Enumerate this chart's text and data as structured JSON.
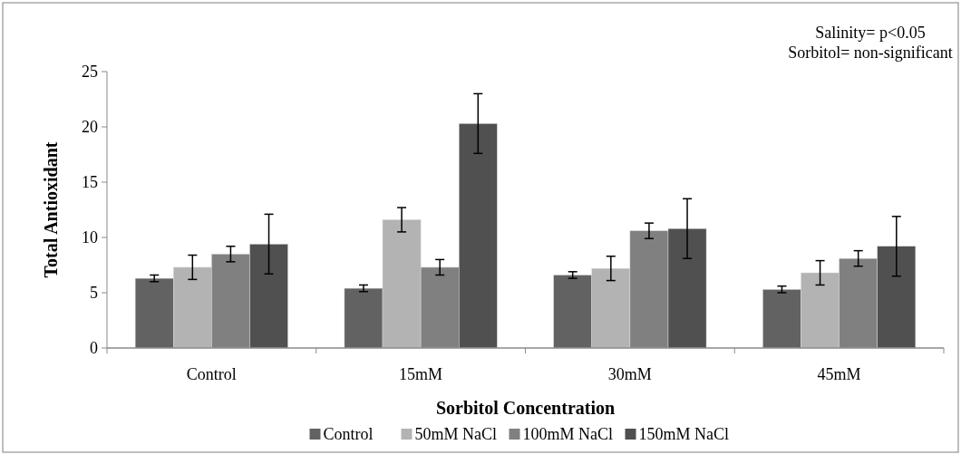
{
  "chart_data": {
    "type": "bar",
    "xlabel": "Sorbitol Concentration",
    "ylabel": "Total Antioxidant",
    "categories": [
      "Control",
      "15mM",
      "30mM",
      "45mM"
    ],
    "series": [
      {
        "name": "Control",
        "color": "#626262",
        "values": [
          6.3,
          5.4,
          6.6,
          5.3
        ],
        "errors": [
          0.3,
          0.3,
          0.3,
          0.3
        ]
      },
      {
        "name": "50mM NaCl",
        "color": "#b3b3b3",
        "values": [
          7.3,
          11.6,
          7.2,
          6.8
        ],
        "errors": [
          1.1,
          1.1,
          1.1,
          1.1
        ]
      },
      {
        "name": "100mM NaCl",
        "color": "#808080",
        "values": [
          8.5,
          7.3,
          10.6,
          8.1
        ],
        "errors": [
          0.7,
          0.7,
          0.7,
          0.7
        ]
      },
      {
        "name": "150mM NaCl",
        "color": "#505050",
        "values": [
          9.4,
          20.3,
          10.8,
          9.2
        ],
        "errors": [
          2.7,
          2.7,
          2.7,
          2.7
        ]
      }
    ],
    "ylim": [
      0,
      25
    ],
    "yticks": [
      0,
      5,
      10,
      15,
      20,
      25
    ],
    "grid": false,
    "legend": "bottom",
    "annotations": [
      "Salinity= p<0.05",
      "Sorbitol= non-significant"
    ]
  }
}
